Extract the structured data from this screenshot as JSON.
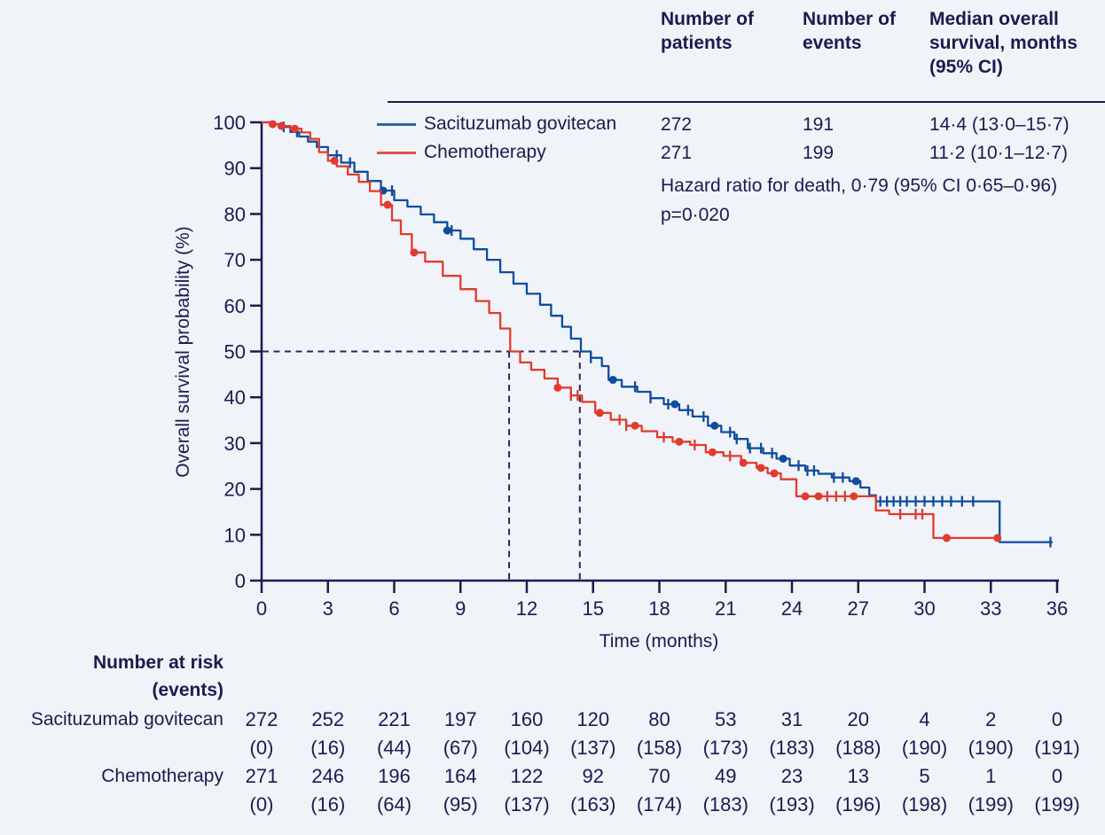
{
  "stats_table": {
    "col_headers": [
      "Number of patients",
      "Number of events",
      "Median overall survival, months (95% CI)"
    ],
    "hazard_ratio_text": "Hazard ratio for death, 0·79 (95% CI 0·65–0·96)",
    "p_value_text": "p=0·020"
  },
  "chart_data": {
    "type": "line",
    "subtype": "kaplan-meier-step",
    "title": "",
    "xlabel": "Time (months)",
    "ylabel": "Overall survival probability (%)",
    "xlim": [
      0,
      36
    ],
    "ylim": [
      0,
      100
    ],
    "x_ticks": [
      0,
      3,
      6,
      9,
      12,
      15,
      18,
      21,
      24,
      27,
      30,
      33,
      36
    ],
    "y_ticks": [
      0,
      10,
      20,
      30,
      40,
      50,
      60,
      70,
      80,
      90,
      100
    ],
    "grid": false,
    "legend_position": "top-left-inside",
    "median_reference": {
      "survival_pct": 50,
      "times": [
        11.2,
        14.4
      ]
    },
    "series": [
      {
        "name": "Sacituzumab govitecan",
        "color": "#0e4c9e",
        "number_of_patients": "272",
        "number_of_events": "191",
        "median_os": "14·4 (13·0–15·7)",
        "points": [
          [
            0,
            100
          ],
          [
            0.5,
            99.6
          ],
          [
            0.9,
            99
          ],
          [
            1.3,
            97.9
          ],
          [
            1.7,
            96.9
          ],
          [
            2.1,
            95.8
          ],
          [
            2.5,
            94.6
          ],
          [
            3.0,
            92.8
          ],
          [
            3.6,
            91.2
          ],
          [
            4.2,
            89.2
          ],
          [
            4.8,
            87.2
          ],
          [
            5.4,
            85.1
          ],
          [
            6.0,
            83
          ],
          [
            6.6,
            81.6
          ],
          [
            7.2,
            79.9
          ],
          [
            7.8,
            78.2
          ],
          [
            8.4,
            76.4
          ],
          [
            9.0,
            74.6
          ],
          [
            9.6,
            72.3
          ],
          [
            10.2,
            70
          ],
          [
            10.8,
            67.3
          ],
          [
            11.4,
            64.8
          ],
          [
            12.0,
            62.6
          ],
          [
            12.6,
            60.2
          ],
          [
            13.1,
            57.8
          ],
          [
            13.6,
            55.4
          ],
          [
            14.0,
            52.8
          ],
          [
            14.45,
            50
          ],
          [
            14.9,
            48.6
          ],
          [
            15.4,
            46.8
          ],
          [
            15.7,
            43.8
          ],
          [
            16.3,
            42.3
          ],
          [
            17.0,
            41.2
          ],
          [
            17.6,
            39.8
          ],
          [
            18.2,
            38.5
          ],
          [
            18.9,
            37.2
          ],
          [
            19.5,
            35.8
          ],
          [
            20.2,
            33.8
          ],
          [
            20.8,
            32.4
          ],
          [
            21.4,
            30.9
          ],
          [
            22.0,
            28.9
          ],
          [
            22.7,
            27.8
          ],
          [
            23.3,
            26.6
          ],
          [
            23.9,
            25.1
          ],
          [
            24.6,
            24
          ],
          [
            25.2,
            23.3
          ],
          [
            25.8,
            22.5
          ],
          [
            26.6,
            21.7
          ],
          [
            27.1,
            20.3
          ],
          [
            27.5,
            18.6
          ],
          [
            27.8,
            17.3
          ],
          [
            33.4,
            8.4
          ],
          [
            35.8,
            8.4
          ]
        ],
        "censor_times": [
          1.0,
          1.6,
          3.4,
          4.0,
          5.9,
          8.6,
          14.9,
          16.9,
          17.6,
          18.4,
          19.3,
          20.0,
          21.2,
          21.5,
          22.1,
          22.6,
          23.1,
          24.3,
          24.7,
          25.0,
          25.9,
          26.3,
          28.0,
          28.3,
          28.6,
          28.9,
          29.2,
          29.6,
          30.0,
          30.4,
          30.8,
          31.2,
          31.7,
          32.2,
          35.7
        ],
        "marker_times": [
          5.5,
          8.4,
          15.9,
          18.7,
          20.5,
          23.6,
          26.9
        ]
      },
      {
        "name": "Chemotherapy",
        "color": "#e23a2e",
        "number_of_patients": "271",
        "number_of_events": "199",
        "median_os": "11·2 (10·1–12·7)",
        "points": [
          [
            0,
            100
          ],
          [
            0.4,
            99.6
          ],
          [
            0.9,
            99.2
          ],
          [
            1.3,
            98.6
          ],
          [
            1.8,
            97.8
          ],
          [
            2.2,
            96.4
          ],
          [
            2.6,
            93.5
          ],
          [
            3.0,
            91.6
          ],
          [
            3.4,
            90.4
          ],
          [
            3.9,
            88.6
          ],
          [
            4.4,
            87
          ],
          [
            4.9,
            85
          ],
          [
            5.4,
            82
          ],
          [
            5.9,
            78.6
          ],
          [
            6.3,
            75.6
          ],
          [
            6.8,
            71.6
          ],
          [
            7.4,
            69.6
          ],
          [
            8.2,
            66.5
          ],
          [
            9.0,
            63.6
          ],
          [
            9.7,
            61
          ],
          [
            10.3,
            58.4
          ],
          [
            10.8,
            55
          ],
          [
            11.25,
            50
          ],
          [
            11.7,
            47.6
          ],
          [
            12.2,
            46
          ],
          [
            12.8,
            44.1
          ],
          [
            13.4,
            42.1
          ],
          [
            14.0,
            40.4
          ],
          [
            14.5,
            39
          ],
          [
            15.1,
            36.6
          ],
          [
            15.8,
            35.1
          ],
          [
            16.5,
            33.8
          ],
          [
            17.2,
            32.6
          ],
          [
            17.9,
            31.3
          ],
          [
            18.6,
            30.3
          ],
          [
            19.4,
            29.6
          ],
          [
            20.1,
            28
          ],
          [
            20.9,
            27.2
          ],
          [
            21.7,
            25.7
          ],
          [
            22.4,
            24.6
          ],
          [
            22.9,
            23.4
          ],
          [
            23.5,
            22.1
          ],
          [
            24.2,
            18.4
          ],
          [
            27.8,
            15.3
          ],
          [
            28.4,
            14.5
          ],
          [
            30.4,
            9.3
          ],
          [
            33.3,
            9.3
          ]
        ],
        "censor_times": [
          14.0,
          14.3,
          16.2,
          16.5,
          18.2,
          19.6,
          21.2,
          25.6,
          26.0,
          26.4,
          28.9,
          29.6,
          29.9
        ],
        "marker_times": [
          0.5,
          0.9,
          1.5,
          3.3,
          5.7,
          6.9,
          13.4,
          15.3,
          16.9,
          18.9,
          20.4,
          21.8,
          22.6,
          23.2,
          24.6,
          25.2,
          26.8,
          31.0,
          33.3
        ]
      }
    ],
    "risk_table": {
      "header_line1": "Number at risk",
      "header_line2": "(events)",
      "rows": [
        {
          "label": "Sacituzumab govitecan",
          "counts": [
            "272",
            "252",
            "221",
            "197",
            "160",
            "120",
            "80",
            "53",
            "31",
            "20",
            "4",
            "2",
            "0"
          ],
          "events": [
            "(0)",
            "(16)",
            "(44)",
            "(67)",
            "(104)",
            "(137)",
            "(158)",
            "(173)",
            "(183)",
            "(188)",
            "(190)",
            "(190)",
            "(191)"
          ]
        },
        {
          "label": "Chemotherapy",
          "counts": [
            "271",
            "246",
            "196",
            "164",
            "122",
            "92",
            "70",
            "49",
            "23",
            "13",
            "5",
            "1",
            "0"
          ],
          "events": [
            "(0)",
            "(16)",
            "(64)",
            "(95)",
            "(137)",
            "(163)",
            "(174)",
            "(183)",
            "(193)",
            "(196)",
            "(198)",
            "(199)",
            "(199)"
          ]
        }
      ]
    },
    "colors": {
      "text_navy": "#1d1a4f",
      "dashed_reference": "#2a2a5a",
      "background": "#f0f3f8"
    }
  }
}
